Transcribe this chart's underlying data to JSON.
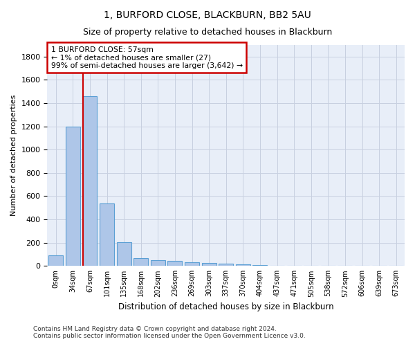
{
  "title1": "1, BURFORD CLOSE, BLACKBURN, BB2 5AU",
  "title2": "Size of property relative to detached houses in Blackburn",
  "xlabel": "Distribution of detached houses by size in Blackburn",
  "ylabel": "Number of detached properties",
  "bar_labels": [
    "0sqm",
    "34sqm",
    "67sqm",
    "101sqm",
    "135sqm",
    "168sqm",
    "202sqm",
    "236sqm",
    "269sqm",
    "303sqm",
    "337sqm",
    "370sqm",
    "404sqm",
    "437sqm",
    "471sqm",
    "505sqm",
    "538sqm",
    "572sqm",
    "606sqm",
    "639sqm",
    "673sqm"
  ],
  "bar_values": [
    90,
    1200,
    1460,
    535,
    205,
    70,
    50,
    45,
    32,
    25,
    18,
    12,
    8,
    0,
    0,
    0,
    0,
    0,
    0,
    0,
    0
  ],
  "bar_color": "#aec6e8",
  "bar_edge_color": "#5a9fd4",
  "vline_x": 1.58,
  "annotation_title": "1 BURFORD CLOSE: 57sqm",
  "annotation_line1": "← 1% of detached houses are smaller (27)",
  "annotation_line2": "99% of semi-detached houses are larger (3,642) →",
  "vline_color": "#cc0000",
  "annotation_box_edge": "#cc0000",
  "ylim": [
    0,
    1900
  ],
  "yticks": [
    0,
    200,
    400,
    600,
    800,
    1000,
    1200,
    1400,
    1600,
    1800
  ],
  "footnote1": "Contains HM Land Registry data © Crown copyright and database right 2024.",
  "footnote2": "Contains public sector information licensed under the Open Government Licence v3.0.",
  "bg_color": "#e8eef8",
  "grid_color": "#c8d0e0",
  "title1_fontsize": 10,
  "title2_fontsize": 9
}
